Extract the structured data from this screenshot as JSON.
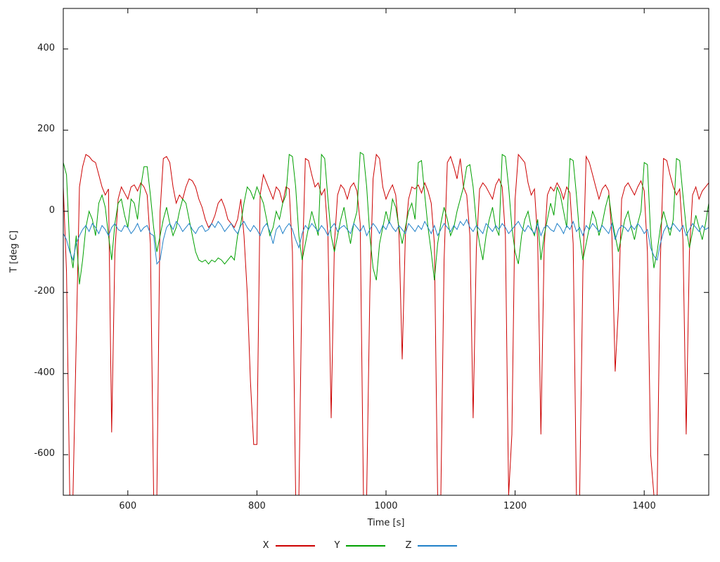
{
  "chart_data": {
    "type": "line",
    "title": "",
    "xlabel": "Time [s]",
    "ylabel": "T [deg C]",
    "x_range": [
      500,
      1500
    ],
    "y_range": [
      -700,
      500
    ],
    "x_step": 5,
    "xticks": [
      600,
      800,
      1000,
      1200,
      1400
    ],
    "yticks": [
      -600,
      -400,
      -200,
      0,
      200,
      400
    ],
    "grid": false,
    "legend_position": "bottom-center",
    "series": [
      {
        "name": "X",
        "color": "#cc0000",
        "values": [
          60,
          -150,
          -700,
          -700,
          -320,
          60,
          110,
          140,
          135,
          125,
          120,
          90,
          60,
          40,
          55,
          -545,
          -100,
          30,
          60,
          45,
          30,
          60,
          65,
          50,
          70,
          60,
          40,
          -80,
          -700,
          -700,
          0,
          130,
          135,
          120,
          60,
          20,
          40,
          30,
          60,
          80,
          75,
          60,
          30,
          10,
          -20,
          -40,
          -30,
          -10,
          20,
          30,
          10,
          -20,
          -30,
          -40,
          -20,
          30,
          -60,
          -200,
          -420,
          -575,
          -575,
          40,
          90,
          70,
          50,
          30,
          60,
          50,
          20,
          60,
          55,
          -100,
          -700,
          -700,
          -150,
          130,
          125,
          90,
          60,
          70,
          40,
          55,
          -60,
          -510,
          -80,
          40,
          65,
          55,
          30,
          60,
          70,
          50,
          -30,
          -700,
          -700,
          -200,
          80,
          140,
          130,
          60,
          30,
          50,
          65,
          40,
          -50,
          -365,
          -60,
          30,
          60,
          55,
          65,
          45,
          70,
          50,
          20,
          -80,
          -700,
          -700,
          -120,
          120,
          135,
          110,
          80,
          130,
          60,
          40,
          -60,
          -510,
          -90,
          55,
          70,
          60,
          45,
          30,
          65,
          80,
          60,
          -60,
          -700,
          -550,
          30,
          140,
          130,
          120,
          70,
          40,
          55,
          -70,
          -550,
          -90,
          40,
          60,
          50,
          70,
          55,
          30,
          60,
          45,
          -80,
          -700,
          -700,
          -150,
          135,
          120,
          90,
          60,
          30,
          55,
          65,
          50,
          -60,
          -395,
          -240,
          30,
          60,
          70,
          55,
          40,
          60,
          75,
          50,
          -100,
          -600,
          -700,
          -700,
          -120,
          130,
          125,
          90,
          60,
          40,
          55,
          -70,
          -550,
          -100,
          40,
          60,
          30,
          50,
          60,
          70
        ]
      },
      {
        "name": "Y",
        "color": "#00a000",
        "values": [
          120,
          90,
          -90,
          -140,
          -60,
          -180,
          -120,
          -40,
          0,
          -20,
          -60,
          20,
          40,
          10,
          -60,
          -120,
          -30,
          20,
          30,
          -10,
          -40,
          30,
          20,
          -20,
          60,
          110,
          110,
          40,
          -40,
          -100,
          -60,
          -20,
          10,
          -30,
          -60,
          -40,
          0,
          30,
          20,
          -20,
          -60,
          -100,
          -120,
          -125,
          -120,
          -130,
          -120,
          -125,
          -115,
          -120,
          -130,
          -120,
          -110,
          -120,
          -60,
          -30,
          20,
          60,
          50,
          30,
          60,
          40,
          20,
          -20,
          -60,
          -40,
          0,
          -20,
          20,
          40,
          140,
          135,
          60,
          -60,
          -120,
          -80,
          -40,
          0,
          -30,
          -60,
          140,
          130,
          30,
          -60,
          -100,
          -60,
          -20,
          10,
          -40,
          -80,
          -30,
          0,
          145,
          140,
          60,
          -60,
          -140,
          -170,
          -80,
          -40,
          0,
          -30,
          30,
          10,
          -40,
          -80,
          -40,
          0,
          20,
          -20,
          120,
          125,
          40,
          -40,
          -100,
          -170,
          -80,
          -30,
          10,
          -20,
          -60,
          -40,
          0,
          30,
          60,
          110,
          115,
          60,
          -30,
          -80,
          -120,
          -60,
          -20,
          10,
          -40,
          -60,
          140,
          135,
          60,
          -40,
          -100,
          -130,
          -60,
          -20,
          0,
          -40,
          -60,
          -20,
          -120,
          -60,
          -20,
          20,
          -10,
          60,
          40,
          0,
          -40,
          130,
          125,
          40,
          -60,
          -120,
          -80,
          -40,
          0,
          -20,
          -60,
          -30,
          10,
          40,
          -20,
          -60,
          -100,
          -60,
          -20,
          0,
          -40,
          -70,
          -30,
          0,
          120,
          115,
          -60,
          -140,
          -100,
          -40,
          0,
          -30,
          -60,
          -20,
          130,
          125,
          40,
          -40,
          -90,
          -50,
          -10,
          -40,
          -70,
          -30,
          20
        ]
      },
      {
        "name": "Z",
        "color": "#2080c8",
        "values": [
          -55,
          -70,
          -100,
          -120,
          -80,
          -60,
          -45,
          -35,
          -50,
          -30,
          -40,
          -55,
          -35,
          -45,
          -60,
          -40,
          -30,
          -45,
          -50,
          -35,
          -40,
          -55,
          -45,
          -30,
          -50,
          -40,
          -35,
          -55,
          -60,
          -130,
          -120,
          -70,
          -40,
          -30,
          -45,
          -25,
          -35,
          -50,
          -40,
          -30,
          -45,
          -55,
          -40,
          -35,
          -50,
          -45,
          -30,
          -40,
          -25,
          -35,
          -50,
          -40,
          -30,
          -45,
          -55,
          -35,
          -25,
          -40,
          -50,
          -35,
          -45,
          -60,
          -40,
          -30,
          -50,
          -80,
          -45,
          -35,
          -55,
          -40,
          -30,
          -45,
          -70,
          -90,
          -55,
          -35,
          -45,
          -30,
          -40,
          -50,
          -35,
          -45,
          -60,
          -40,
          -30,
          -50,
          -40,
          -35,
          -45,
          -55,
          -30,
          -40,
          -50,
          -35,
          -60,
          -45,
          -30,
          -40,
          -55,
          -35,
          -45,
          -25,
          -40,
          -50,
          -35,
          -45,
          -55,
          -30,
          -40,
          -50,
          -35,
          -45,
          -25,
          -40,
          -55,
          -35,
          -60,
          -45,
          -30,
          -40,
          -50,
          -35,
          -45,
          -25,
          -35,
          -20,
          -40,
          -50,
          -35,
          -45,
          -55,
          -30,
          -40,
          -50,
          -35,
          -45,
          -30,
          -40,
          -55,
          -45,
          -35,
          -25,
          -40,
          -50,
          -35,
          -45,
          -55,
          -30,
          -60,
          -40,
          -35,
          -45,
          -50,
          -30,
          -40,
          -55,
          -35,
          -45,
          -25,
          -50,
          -40,
          -60,
          -35,
          -45,
          -30,
          -40,
          -50,
          -35,
          -45,
          -55,
          -30,
          -70,
          -45,
          -35,
          -40,
          -50,
          -35,
          -45,
          -30,
          -40,
          -55,
          -45,
          -90,
          -110,
          -120,
          -80,
          -50,
          -35,
          -45,
          -30,
          -40,
          -50,
          -35,
          -60,
          -45,
          -30,
          -40,
          -50,
          -35,
          -45,
          -40
        ]
      }
    ]
  }
}
